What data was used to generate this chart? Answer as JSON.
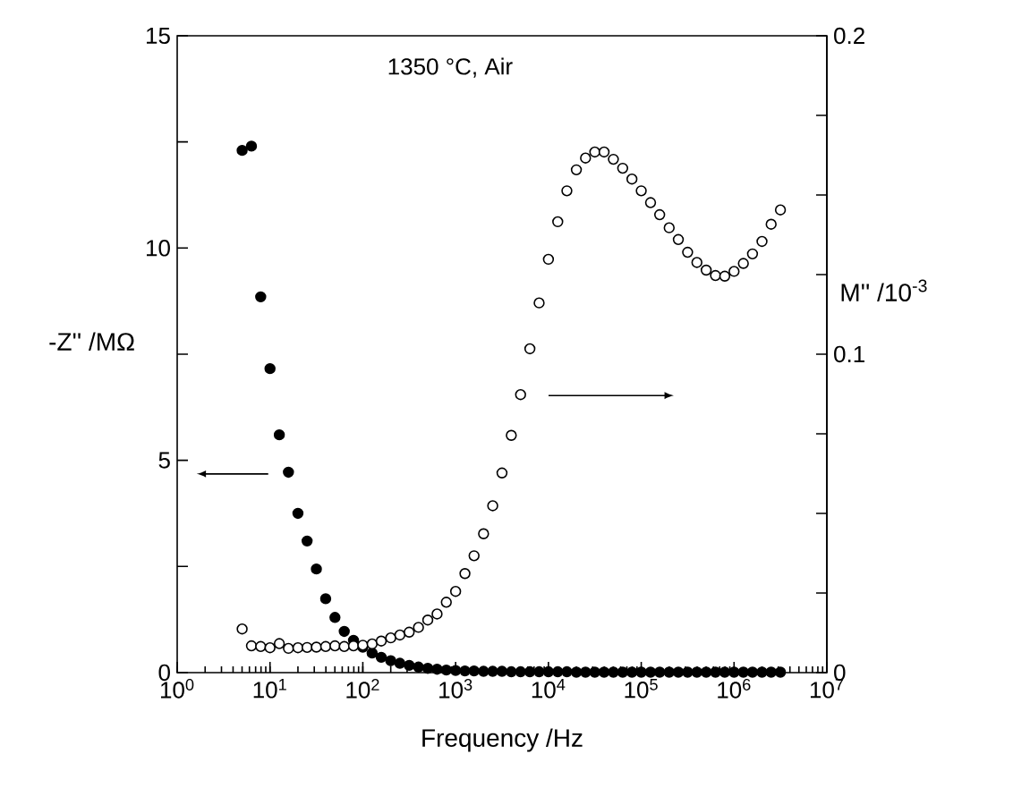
{
  "chart_data": {
    "type": "scatter",
    "xlabel": "Frequency /Hz",
    "ylabel": "-Z'' /MΩ",
    "y2label": "M'' /10$^{-3}$",
    "annotations": [
      "1350 °C, Air"
    ],
    "log": "x",
    "marker": "circle",
    "xlim": [
      1,
      10000000
    ],
    "xticks": [
      {
        "value": 1,
        "label": "10$^{0}$"
      },
      {
        "value": 10,
        "label": "10$^{1}$"
      },
      {
        "value": 100,
        "label": "10$^{2}$"
      },
      {
        "value": 1000,
        "label": "10$^{3}$"
      },
      {
        "value": 10000,
        "label": "10$^{4}$"
      },
      {
        "value": 100000,
        "label": "10$^{5}$"
      },
      {
        "value": 1000000,
        "label": "10$^{6}$"
      },
      {
        "value": 10000000,
        "label": "10$^{7}$"
      }
    ],
    "ylim": [
      0,
      15
    ],
    "yticks": [
      0,
      {
        "value": 2.5,
        "label": null
      },
      5,
      {
        "value": 7.5,
        "label": null
      },
      10,
      {
        "value": 12.5,
        "label": null
      },
      15
    ],
    "y2lim": [
      0,
      0.2
    ],
    "y2ticks": [
      0,
      {
        "value": 0.025,
        "label": null
      },
      {
        "value": 0.05,
        "label": null
      },
      {
        "value": 0.075,
        "label": null
      },
      0.1,
      {
        "value": 0.125,
        "label": null
      },
      {
        "value": 0.15,
        "label": null
      },
      {
        "value": 0.175,
        "label": null
      },
      0.2
    ],
    "x": [
      5.01,
      6.31,
      7.94,
      10,
      12.6,
      15.8,
      20,
      25.1,
      31.6,
      39.8,
      50.1,
      63.1,
      79.4,
      100,
      126,
      158,
      200,
      251,
      316,
      398,
      501,
      631,
      794,
      1000,
      1260,
      1580,
      2000,
      2510,
      3160,
      3980,
      5010,
      6310,
      7940,
      10000,
      12600,
      15800,
      20000,
      25100,
      31600,
      39800,
      50100,
      63100,
      79400,
      100000,
      126000,
      158000,
      200000,
      251000,
      316000,
      398000,
      501000,
      631000,
      794000,
      1000000,
      1260000,
      1580000,
      2000000,
      2510000,
      3160000
    ],
    "series": [
      {
        "color": "#000000",
        "values": [
          12.3,
          12.4,
          8.85,
          7.16,
          5.6,
          4.72,
          3.75,
          3.1,
          2.44,
          1.74,
          1.3,
          0.97,
          0.76,
          0.6,
          0.46,
          0.36,
          0.28,
          0.22,
          0.17,
          0.13,
          0.1,
          0.08,
          0.06,
          0.05,
          0.04,
          0.04,
          0.03,
          0.03,
          0.03,
          0.02,
          0.02,
          0.02,
          0.02,
          0.02,
          0.02,
          0.02,
          0.01,
          0.01,
          0.01,
          0.01,
          0.01,
          0.01,
          0.01,
          0.01,
          0.01,
          0.01,
          0.01,
          0.01,
          0.01,
          0.01,
          0.01,
          0.01,
          0.01,
          0.01,
          0.01,
          0.01,
          0.01,
          0.01,
          0.01
        ]
      },
      {
        "color": "#000000",
        "axis": "y2",
        "values": [
          0.0137,
          0.0084,
          0.0082,
          0.0078,
          0.0091,
          0.0076,
          0.0078,
          0.0079,
          0.008,
          0.0082,
          0.0084,
          0.0082,
          0.0084,
          0.0086,
          0.009,
          0.0099,
          0.0109,
          0.0118,
          0.0127,
          0.0142,
          0.0165,
          0.0184,
          0.0221,
          0.0255,
          0.0311,
          0.0367,
          0.0436,
          0.0524,
          0.0627,
          0.0745,
          0.0873,
          0.1017,
          0.1161,
          0.1298,
          0.1416,
          0.1513,
          0.1579,
          0.1616,
          0.1635,
          0.1635,
          0.1612,
          0.1584,
          0.155,
          0.1513,
          0.1476,
          0.1438,
          0.1397,
          0.136,
          0.132,
          0.1288,
          0.1264,
          0.1247,
          0.1245,
          0.126,
          0.1285,
          0.1315,
          0.1354,
          0.1408,
          0.1453
        ]
      }
    ]
  }
}
